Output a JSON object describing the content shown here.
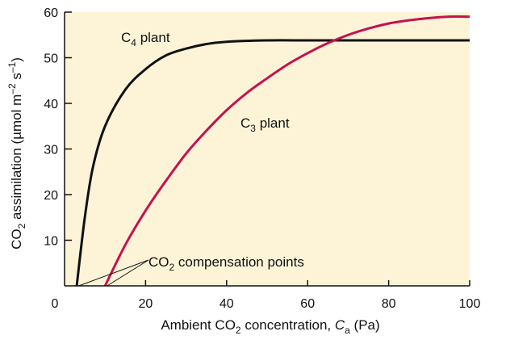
{
  "chart_data": {
    "type": "line",
    "title": "",
    "xlabel": {
      "pre": "Ambient CO",
      "sub": "2",
      "mid": " concentration, ",
      "italic": "C",
      "isub": "a",
      "post": " (Pa)"
    },
    "ylabel": {
      "pre": "CO",
      "sub": "2",
      "mid": " assimilation (µmol m",
      "sup1": "–2",
      "mid2": " s",
      "sup2": "–1",
      "post": ")"
    },
    "xlim": [
      0,
      100
    ],
    "ylim": [
      0,
      60
    ],
    "xticks": [
      0,
      20,
      40,
      60,
      80,
      100
    ],
    "yticks": [
      10,
      20,
      30,
      40,
      50,
      60
    ],
    "grid": false,
    "background": "#fdf4d8",
    "series": [
      {
        "name": {
          "pre": "C",
          "sub": "4",
          "post": " plant"
        },
        "color": "#111111",
        "x": [
          3,
          5,
          7,
          10,
          15,
          20,
          25,
          30,
          35,
          40,
          50,
          60,
          70,
          80,
          90,
          100
        ],
        "y": [
          0,
          15,
          26,
          35,
          43,
          47.5,
          50.5,
          52,
          53,
          53.5,
          53.8,
          53.8,
          53.8,
          53.8,
          53.8,
          53.8
        ]
      },
      {
        "name": {
          "pre": "C",
          "sub": "3",
          "post": " plant"
        },
        "color": "#c4124f",
        "x": [
          10,
          15,
          20,
          25,
          30,
          35,
          40,
          45,
          50,
          55,
          60,
          65,
          70,
          75,
          80,
          85,
          90,
          95,
          100
        ],
        "y": [
          0,
          9,
          16.5,
          23,
          29,
          34,
          38.5,
          42.3,
          45.5,
          48.5,
          51,
          53.2,
          55,
          56.4,
          57.5,
          58.2,
          58.7,
          59,
          59
        ]
      }
    ],
    "annotation": {
      "pre": "CO",
      "sub": "2",
      "post": " compensation points"
    },
    "compensation_points": [
      {
        "x": 3.5,
        "y": 0
      },
      {
        "x": 10.5,
        "y": 0
      }
    ]
  }
}
